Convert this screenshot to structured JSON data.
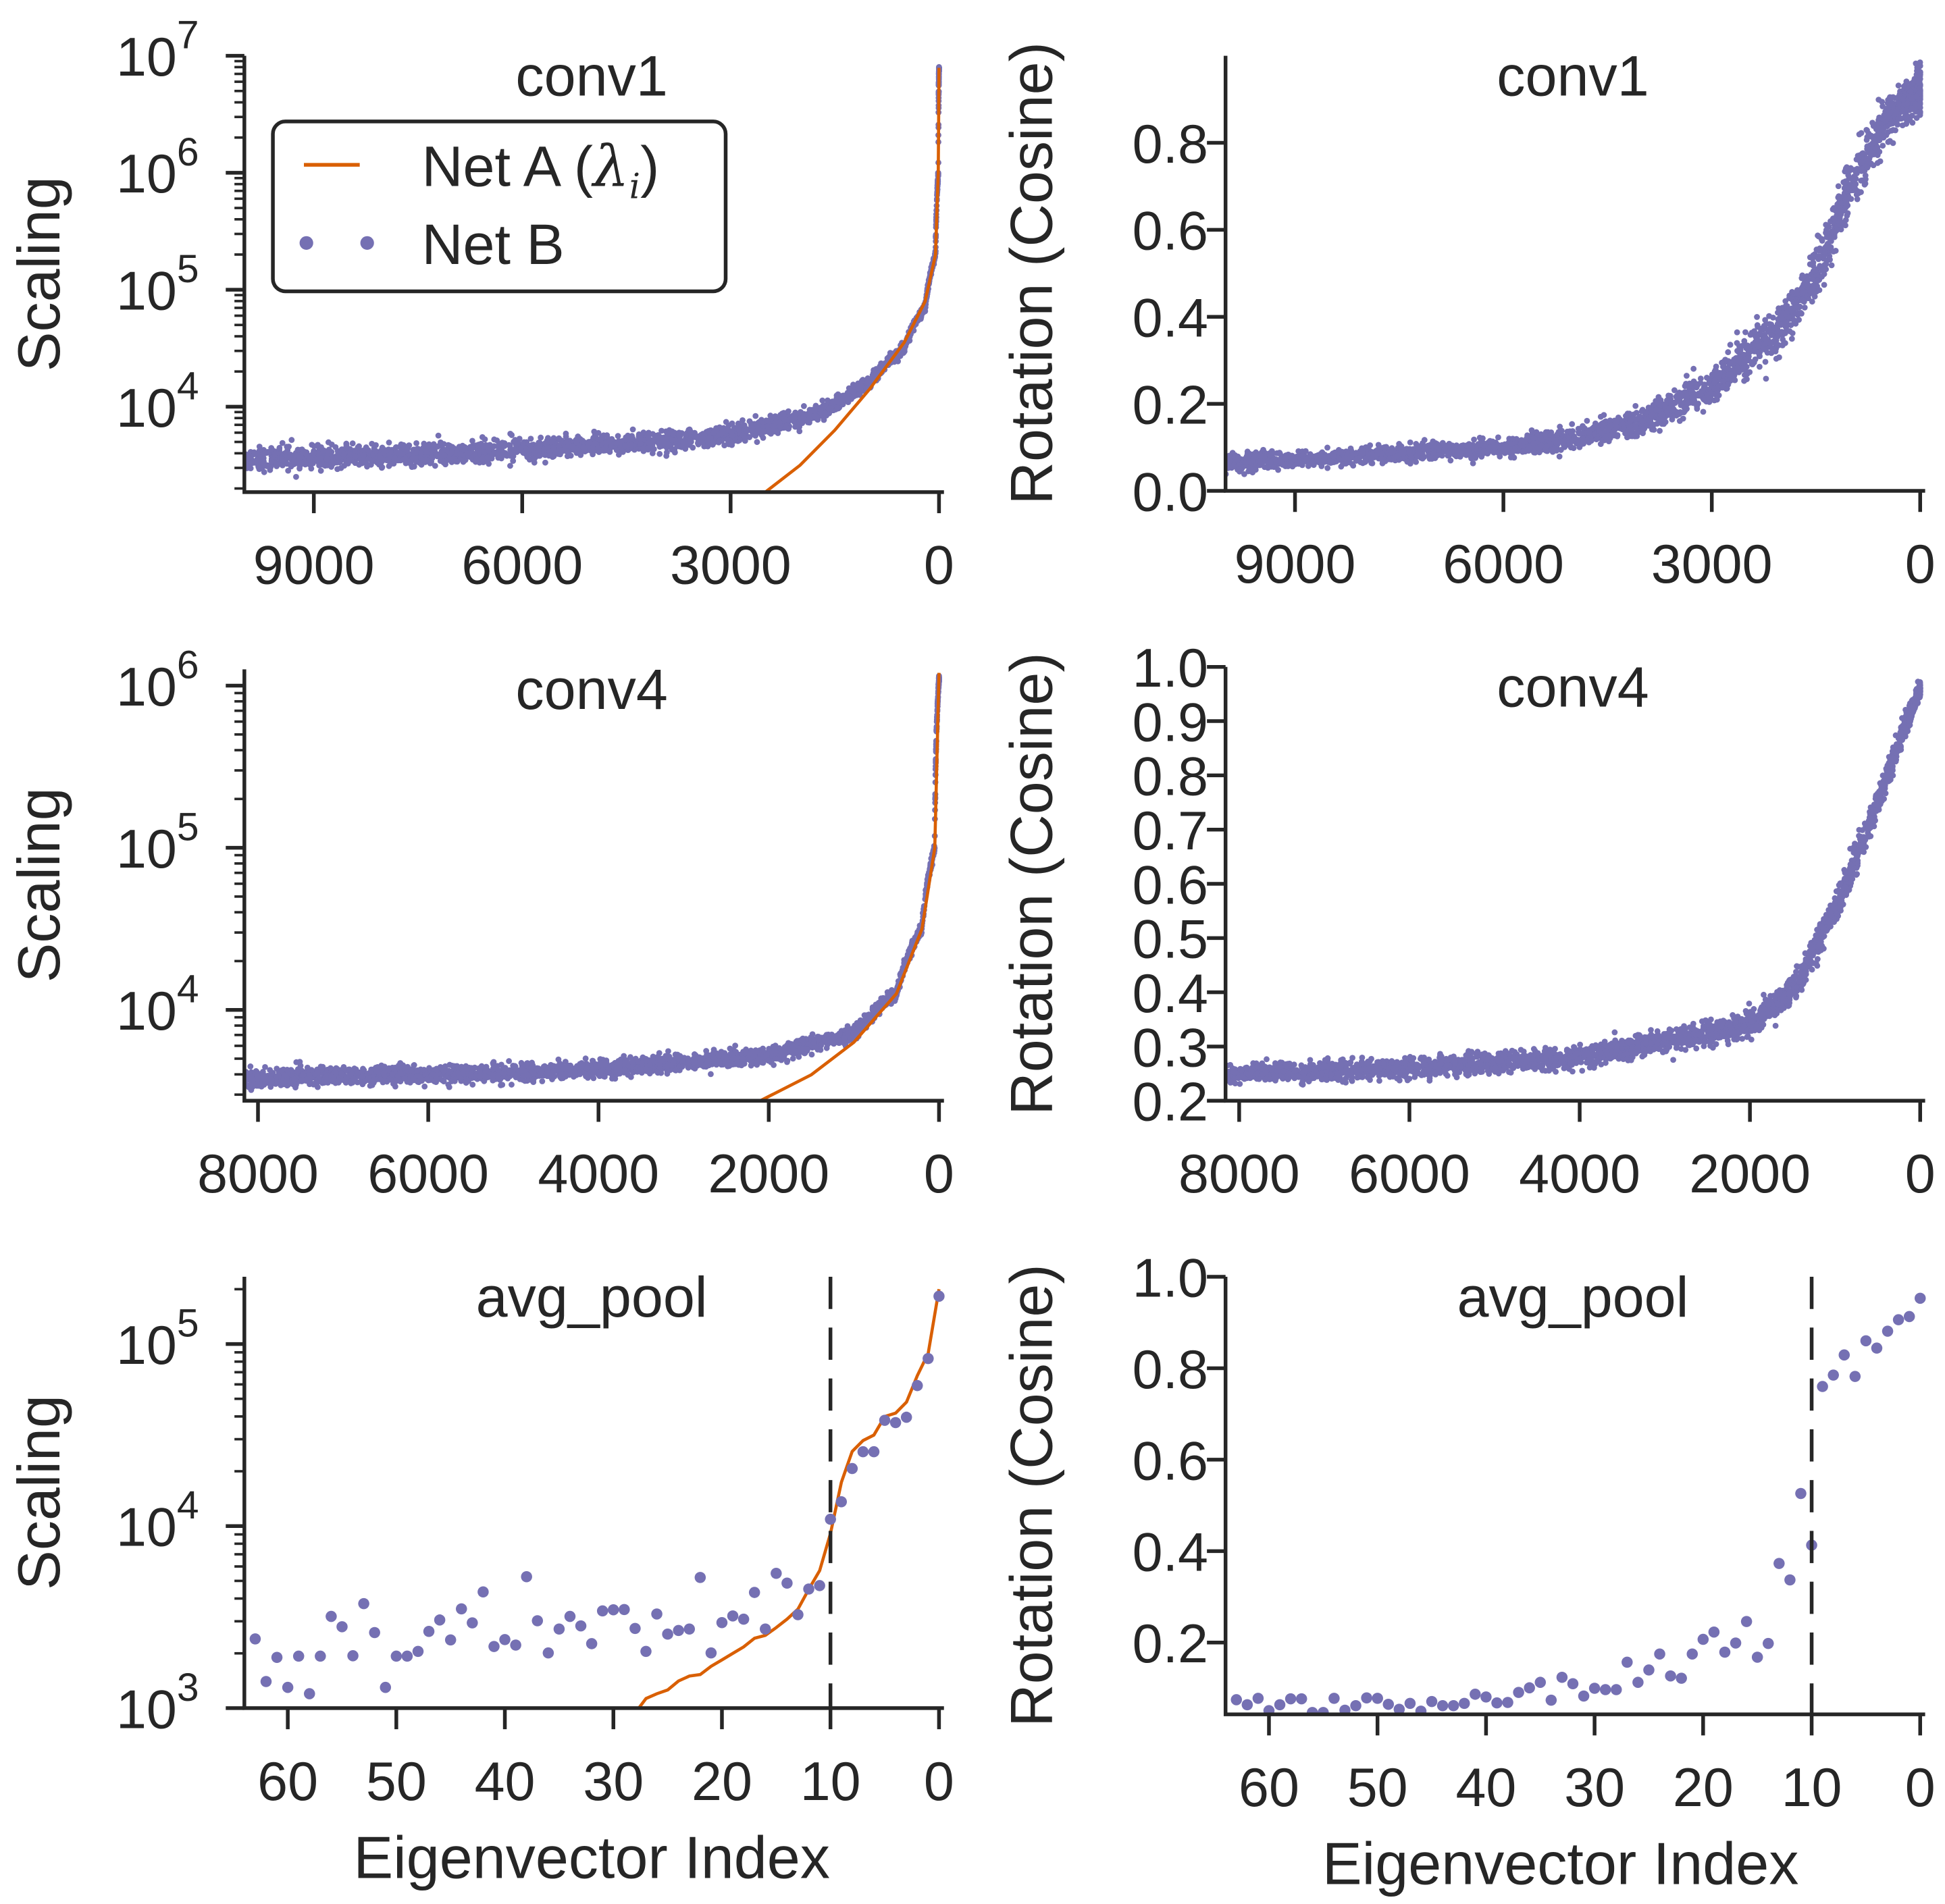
{
  "colors": {
    "net_a": "#d95f02",
    "net_b": "#7570b3",
    "axes": "#262626"
  },
  "legend": {
    "placement": "upper-left of first panel",
    "net_a_label": "Net A (",
    "net_a_lambda": "λ",
    "net_a_sub": "i",
    "net_a_close": ")",
    "net_b_label": "Net B"
  },
  "chart_data": [
    {
      "type": "scatter+line",
      "title": "conv1",
      "ylabel": "Scaling",
      "xlabel": "",
      "yscale": "log",
      "xlim": [
        10000,
        0
      ],
      "ylim": [
        1862,
        10000000
      ],
      "xticks": [
        9000,
        6000,
        3000,
        0
      ],
      "xticklabels": [
        "9000",
        "6000",
        "3000",
        "0"
      ],
      "yticks": [
        10000,
        100000,
        1000000,
        10000000
      ],
      "yticklabels": [
        [
          "10",
          "4"
        ],
        [
          "10",
          "5"
        ],
        [
          "10",
          "6"
        ],
        [
          "10",
          "7"
        ]
      ],
      "net_b_band": {
        "x": [
          10000,
          8000,
          6000,
          4000,
          3000,
          2000,
          1500,
          1000,
          500,
          200,
          50,
          10,
          0
        ],
        "center": [
          3550,
          3800,
          4270,
          5010,
          5750,
          7940,
          10000,
          15850,
          31600,
          70800,
          200000,
          1000000,
          7900000
        ],
        "log_spread": [
          0.1,
          0.1,
          0.1,
          0.1,
          0.09,
          0.08,
          0.07,
          0.06,
          0.05,
          0.04,
          0.03,
          0.02,
          0.01
        ]
      },
      "net_a_line": {
        "x": [
          2500,
          2000,
          1500,
          1000,
          500,
          200,
          50,
          10,
          0
        ],
        "y": [
          1862,
          3160,
          6310,
          14100,
          35500,
          79400,
          200000,
          1000000,
          7900000
        ]
      }
    },
    {
      "type": "scatter",
      "title": "conv1",
      "ylabel": "Rotation (Cosine)",
      "xlabel": "",
      "yscale": "linear",
      "xlim": [
        10000,
        0
      ],
      "ylim": [
        0,
        1.0
      ],
      "xticks": [
        9000,
        6000,
        3000,
        0
      ],
      "xticklabels": [
        "9000",
        "6000",
        "3000",
        "0"
      ],
      "yticks": [
        0.0,
        0.2,
        0.4,
        0.6,
        0.8
      ],
      "yticklabels": [
        "0.0",
        "0.2",
        "0.4",
        "0.6",
        "0.8"
      ],
      "net_b_band": {
        "x": [
          10000,
          8000,
          6000,
          5000,
          4000,
          3000,
          2000,
          1500,
          1000,
          500,
          200,
          0
        ],
        "center": [
          0.065,
          0.08,
          0.1,
          0.12,
          0.16,
          0.24,
          0.38,
          0.5,
          0.7,
          0.85,
          0.9,
          0.92
        ],
        "spread": [
          0.02,
          0.02,
          0.025,
          0.03,
          0.035,
          0.045,
          0.06,
          0.07,
          0.07,
          0.05,
          0.05,
          0.06
        ]
      }
    },
    {
      "type": "scatter+line",
      "title": "conv4",
      "ylabel": "Scaling",
      "xlabel": "",
      "yscale": "log",
      "xlim": [
        8160,
        0
      ],
      "ylim": [
        2750,
        1260000
      ],
      "xticks": [
        8000,
        6000,
        4000,
        2000,
        0
      ],
      "xticklabels": [
        "8000",
        "6000",
        "4000",
        "2000",
        "0"
      ],
      "yticks": [
        10000,
        100000,
        1000000
      ],
      "yticklabels": [
        [
          "10",
          "4"
        ],
        [
          "10",
          "5"
        ],
        [
          "10",
          "6"
        ]
      ],
      "net_b_band": {
        "x": [
          8160,
          6000,
          4000,
          2000,
          1000,
          500,
          200,
          50,
          0
        ],
        "center": [
          3800,
          4000,
          4270,
          5250,
          7080,
          12600,
          31600,
          100000,
          1100000
        ],
        "log_spread": [
          0.06,
          0.06,
          0.06,
          0.06,
          0.05,
          0.04,
          0.035,
          0.03,
          0.02
        ]
      },
      "net_a_line": {
        "x": [
          2100,
          1500,
          1000,
          500,
          200,
          50,
          0
        ],
        "y": [
          2750,
          3980,
          6310,
          12600,
          31600,
          100000,
          1200000
        ]
      }
    },
    {
      "type": "scatter",
      "title": "conv4",
      "ylabel": "Rotation (Cosine)",
      "xlabel": "",
      "yscale": "linear",
      "xlim": [
        8160,
        0
      ],
      "ylim": [
        0.2,
        1.0
      ],
      "xticks": [
        8000,
        6000,
        4000,
        2000,
        0
      ],
      "xticklabels": [
        "8000",
        "6000",
        "4000",
        "2000",
        "0"
      ],
      "yticks": [
        0.2,
        0.3,
        0.4,
        0.5,
        0.6,
        0.7,
        0.8,
        0.9,
        1.0
      ],
      "yticklabels": [
        "0.2",
        "0.3",
        "0.4",
        "0.5",
        "0.6",
        "0.7",
        "0.8",
        "0.9",
        "1.0"
      ],
      "net_b_band": {
        "x": [
          8160,
          6000,
          4000,
          2000,
          1500,
          1000,
          500,
          200,
          0
        ],
        "center": [
          0.25,
          0.26,
          0.28,
          0.34,
          0.4,
          0.55,
          0.75,
          0.88,
          0.96
        ],
        "spread": [
          0.02,
          0.02,
          0.022,
          0.025,
          0.03,
          0.035,
          0.03,
          0.025,
          0.015
        ]
      }
    },
    {
      "type": "scatter+line",
      "title": "avg_pool",
      "ylabel": "Scaling",
      "xlabel": "Eigenvector Index",
      "yscale": "log",
      "xlim": [
        64,
        0
      ],
      "ylim": [
        1000,
        234000
      ],
      "xticks": [
        60,
        50,
        40,
        30,
        20,
        10,
        0
      ],
      "xticklabels": [
        "60",
        "50",
        "40",
        "30",
        "20",
        "10",
        "0"
      ],
      "yticks": [
        1000,
        10000,
        100000
      ],
      "yticklabels": [
        [
          "10",
          "3"
        ],
        [
          "10",
          "4"
        ],
        [
          "10",
          "5"
        ]
      ],
      "vline_x": 10,
      "net_b_points": {
        "x": [
          63,
          62,
          61,
          60,
          59,
          58,
          57,
          56,
          55,
          54,
          53,
          52,
          51,
          50,
          49,
          48,
          47,
          46,
          45,
          44,
          43,
          42,
          41,
          40,
          39,
          38,
          37,
          36,
          35,
          34,
          33,
          32,
          31,
          30,
          29,
          28,
          27,
          26,
          25,
          24,
          23,
          22,
          21,
          20,
          19,
          18,
          17,
          16,
          15,
          14,
          13,
          12,
          11,
          10,
          9,
          8,
          7,
          6,
          5,
          4,
          3,
          2,
          1,
          0
        ],
        "y": [
          2400,
          1400,
          1900,
          1300,
          1930,
          1200,
          1930,
          3190,
          2800,
          1940,
          3750,
          2600,
          1300,
          1930,
          1930,
          2050,
          2640,
          3050,
          2370,
          3510,
          2940,
          4350,
          2180,
          2380,
          2220,
          5270,
          3020,
          2010,
          2720,
          3190,
          2830,
          2260,
          3420,
          3470,
          3480,
          2740,
          2050,
          3290,
          2550,
          2670,
          2720,
          5220,
          2010,
          2950,
          3210,
          3080,
          4320,
          2720,
          5500,
          4860,
          3260,
          4510,
          4710,
          10900,
          13600,
          20700,
          25600,
          25600,
          38100,
          37000,
          39600,
          59100,
          83200,
          183000
        ]
      },
      "net_a_line": {
        "x": [
          0,
          1,
          2,
          3,
          4,
          5,
          6,
          7,
          8,
          9,
          10,
          11,
          12,
          13,
          14,
          15,
          16,
          17,
          18,
          19,
          20,
          21,
          22,
          23,
          24,
          25,
          26,
          27,
          28
        ],
        "y": [
          200000,
          89000,
          67000,
          48000,
          41700,
          40000,
          31600,
          29500,
          25700,
          17400,
          9100,
          5700,
          4500,
          3500,
          3080,
          2770,
          2510,
          2420,
          2170,
          2000,
          1840,
          1700,
          1530,
          1500,
          1410,
          1260,
          1200,
          1130,
          940
        ]
      }
    },
    {
      "type": "scatter",
      "title": "avg_pool",
      "ylabel": "Rotation (Cosine)",
      "xlabel": "Eigenvector Index",
      "yscale": "linear",
      "xlim": [
        64,
        0
      ],
      "ylim": [
        0.043,
        1.0
      ],
      "xticks": [
        60,
        50,
        40,
        30,
        20,
        10,
        0
      ],
      "xticklabels": [
        "60",
        "50",
        "40",
        "30",
        "20",
        "10",
        "0"
      ],
      "yticks": [
        0.2,
        0.4,
        0.6,
        0.8,
        1.0
      ],
      "yticklabels": [
        "0.2",
        "0.4",
        "0.6",
        "0.8",
        "1.0"
      ],
      "vline_x": 10,
      "net_b_points": {
        "x": [
          63,
          62,
          61,
          60,
          59,
          58,
          57,
          56,
          55,
          54,
          53,
          52,
          51,
          50,
          49,
          48,
          47,
          46,
          45,
          44,
          43,
          42,
          41,
          40,
          39,
          38,
          37,
          36,
          35,
          34,
          33,
          32,
          31,
          30,
          29,
          28,
          27,
          26,
          25,
          24,
          23,
          22,
          21,
          20,
          19,
          18,
          17,
          16,
          15,
          14,
          13,
          12,
          11,
          10,
          9,
          8,
          7,
          6,
          5,
          4,
          3,
          2,
          1,
          0
        ],
        "y": [
          0.075,
          0.064,
          0.078,
          0.051,
          0.064,
          0.077,
          0.077,
          0.047,
          0.047,
          0.078,
          0.052,
          0.062,
          0.079,
          0.078,
          0.065,
          0.054,
          0.067,
          0.05,
          0.071,
          0.062,
          0.062,
          0.067,
          0.087,
          0.081,
          0.068,
          0.069,
          0.091,
          0.101,
          0.113,
          0.074,
          0.124,
          0.11,
          0.083,
          0.1,
          0.097,
          0.097,
          0.157,
          0.113,
          0.14,
          0.175,
          0.127,
          0.122,
          0.175,
          0.207,
          0.223,
          0.179,
          0.199,
          0.246,
          0.168,
          0.198,
          0.373,
          0.337,
          0.526,
          0.413,
          0.76,
          0.785,
          0.829,
          0.782,
          0.86,
          0.844,
          0.881,
          0.906,
          0.913,
          0.953
        ]
      }
    }
  ]
}
